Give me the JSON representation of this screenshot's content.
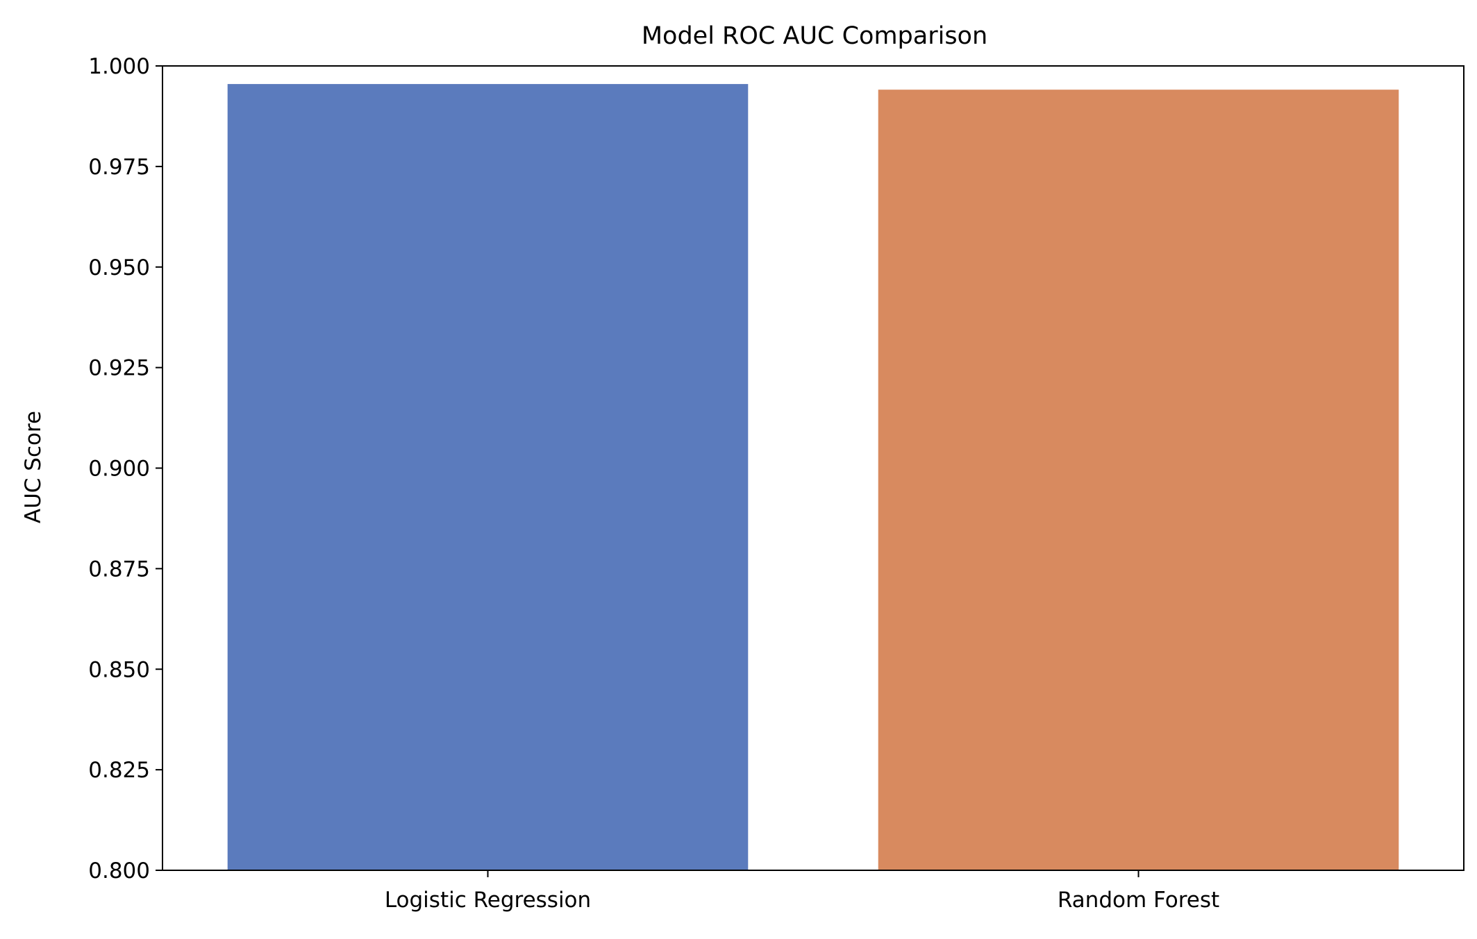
{
  "chart_data": {
    "type": "bar",
    "title": "Model ROC AUC Comparison",
    "xlabel": "",
    "ylabel": "AUC Score",
    "categories": [
      "Logistic Regression",
      "Random Forest"
    ],
    "values": [
      0.9955,
      0.9941
    ],
    "colors": [
      "#5b7bbd",
      "#d88a5f"
    ],
    "ylim": [
      0.8,
      1.0
    ],
    "yticks": [
      0.8,
      0.825,
      0.85,
      0.875,
      0.9,
      0.925,
      0.95,
      0.975,
      1.0
    ],
    "ytick_labels": [
      "0.800",
      "0.825",
      "0.850",
      "0.875",
      "0.900",
      "0.925",
      "0.950",
      "0.975",
      "1.000"
    ],
    "grid": false,
    "legend": "none"
  }
}
